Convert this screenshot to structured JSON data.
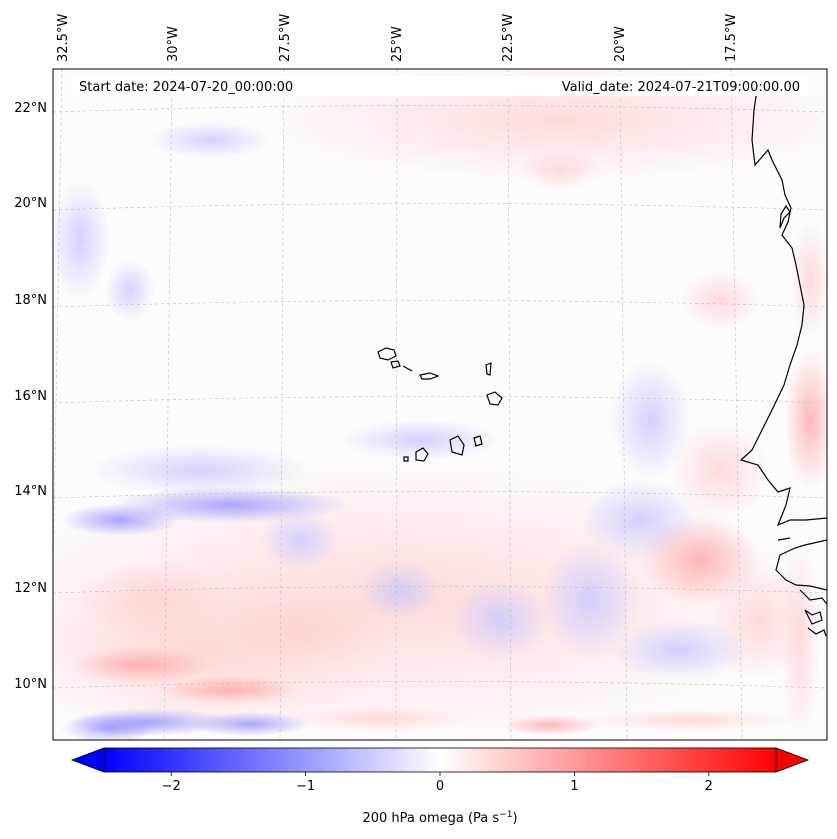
{
  "map": {
    "start_label": "Start date: 2024-07-20_00:00:00",
    "valid_label": "Valid_date: 2024-07-21T09:00:00.00",
    "lon_labels": [
      "32.5°W",
      "30°W",
      "27.5°W",
      "25°W",
      "22.5°W",
      "20°W",
      "17.5°W"
    ],
    "lat_labels": [
      "22°N",
      "20°N",
      "18°N",
      "16°N",
      "14°N",
      "12°N",
      "10°N"
    ]
  },
  "colorbar": {
    "ticks": [
      "−2",
      "−1",
      "0",
      "1",
      "2"
    ],
    "tick_values": [
      -2,
      -1,
      0,
      1,
      2
    ],
    "min": -2.5,
    "max": 2.5,
    "label_main": "200 hPa omega (Pa s",
    "label_sup": "−1",
    "label_end": ")",
    "colors": {
      "negative": "#0000ff",
      "zero": "#ffffff",
      "positive": "#ff0000"
    }
  }
}
